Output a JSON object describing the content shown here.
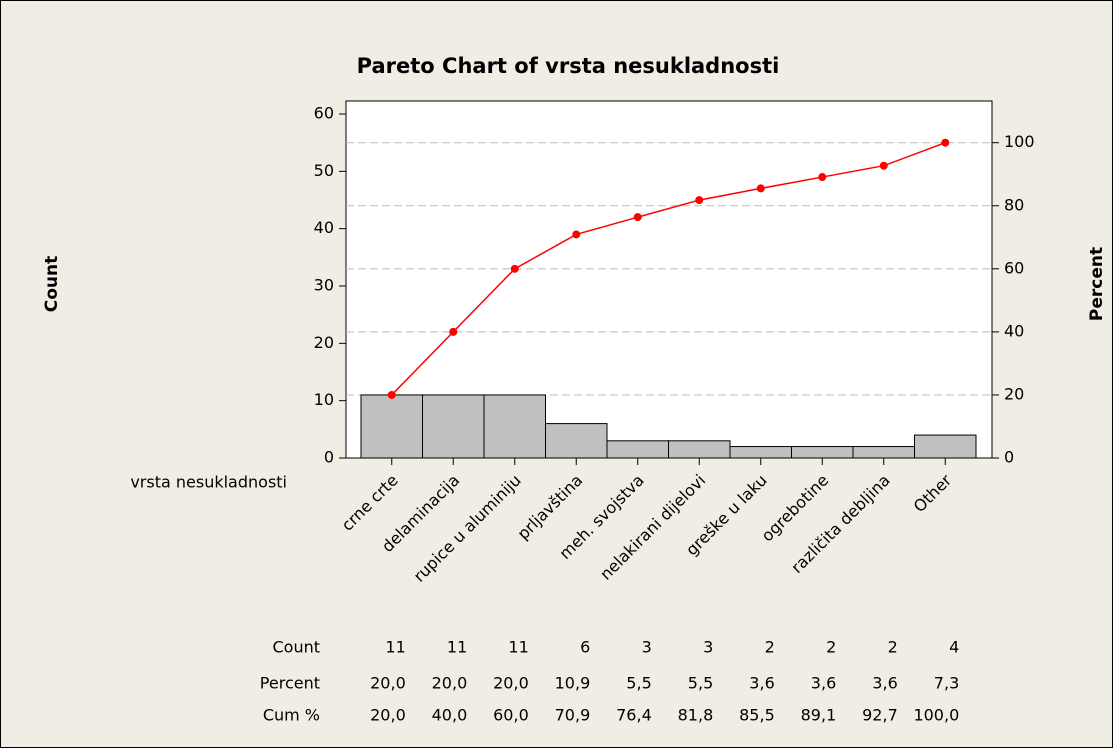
{
  "chart_data": {
    "type": "pareto",
    "title": "Pareto Chart of vrsta nesukladnosti",
    "xlabel": "vrsta nesukladnosti",
    "ylabel": "Count",
    "y2label": "Percent",
    "categories": [
      "crne crte",
      "delaminacija",
      "rupice u aluminiju",
      "prljavština",
      "meh. svojstva",
      "nelakirani dijelovi",
      "greške u laku",
      "ogrebotine",
      "različita debljina",
      "Other"
    ],
    "series": [
      {
        "name": "Count",
        "color": "#c0c0c0",
        "values": [
          11,
          11,
          11,
          6,
          3,
          3,
          2,
          2,
          2,
          4
        ]
      },
      {
        "name": "Cum %",
        "color": "#ff0000",
        "axis": "y2",
        "values": [
          20.0,
          40.0,
          60.0,
          70.9,
          76.4,
          81.8,
          85.5,
          89.1,
          92.7,
          100.0
        ],
        "value_labels": [
          "20,0",
          "40,0",
          "60,0",
          "70,9",
          "76,4",
          "81,8",
          "85,5",
          "89,1",
          "92,7",
          "100,0"
        ]
      }
    ],
    "percent": {
      "name": "Percent",
      "values": [
        20.0,
        20.0,
        20.0,
        10.9,
        5.5,
        5.5,
        3.6,
        3.6,
        3.6,
        7.3
      ],
      "value_labels": [
        "20,0",
        "20,0",
        "20,0",
        "10,9",
        "5,5",
        "5,5",
        "3,6",
        "3,6",
        "3,6",
        "7,3"
      ]
    },
    "ylim": [
      0,
      60
    ],
    "yticks": [
      0,
      10,
      20,
      30,
      40,
      50,
      60
    ],
    "y2lim": [
      0,
      109.1
    ],
    "y2ticks": [
      0,
      20,
      40,
      60,
      80,
      100
    ],
    "grid": "y2"
  }
}
